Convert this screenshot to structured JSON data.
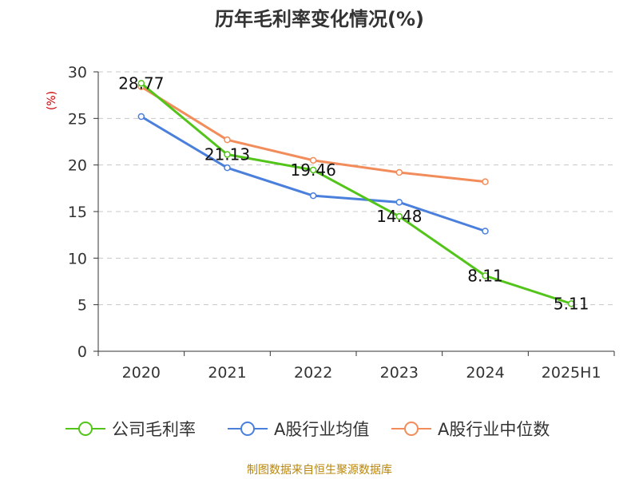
{
  "chart_data": {
    "type": "line",
    "title": "历年毛利率变化情况(%)",
    "ylabel": "(%)",
    "xlabel": "",
    "categories": [
      "2020",
      "2021",
      "2022",
      "2023",
      "2024",
      "2025H1"
    ],
    "ylim": [
      0,
      30
    ],
    "yticks": [
      0,
      5,
      10,
      15,
      20,
      25,
      30
    ],
    "grid": true,
    "legend_position": "bottom",
    "series": [
      {
        "name": "公司毛利率",
        "color": "#52c41a",
        "values": [
          28.77,
          21.13,
          19.46,
          14.48,
          8.11,
          5.11
        ],
        "labels": [
          "28.77",
          "21.13",
          "19.46",
          "14.48",
          "8.11",
          "5.11"
        ]
      },
      {
        "name": "A股行业均值",
        "color": "#4a7fdc",
        "values": [
          25.2,
          19.7,
          16.7,
          16.0,
          12.9,
          null
        ]
      },
      {
        "name": "A股行业中位数",
        "color": "#f28c5a",
        "values": [
          28.4,
          22.7,
          20.5,
          19.2,
          18.2,
          null
        ]
      }
    ]
  },
  "source_note": "制图数据来自恒生聚源数据库"
}
